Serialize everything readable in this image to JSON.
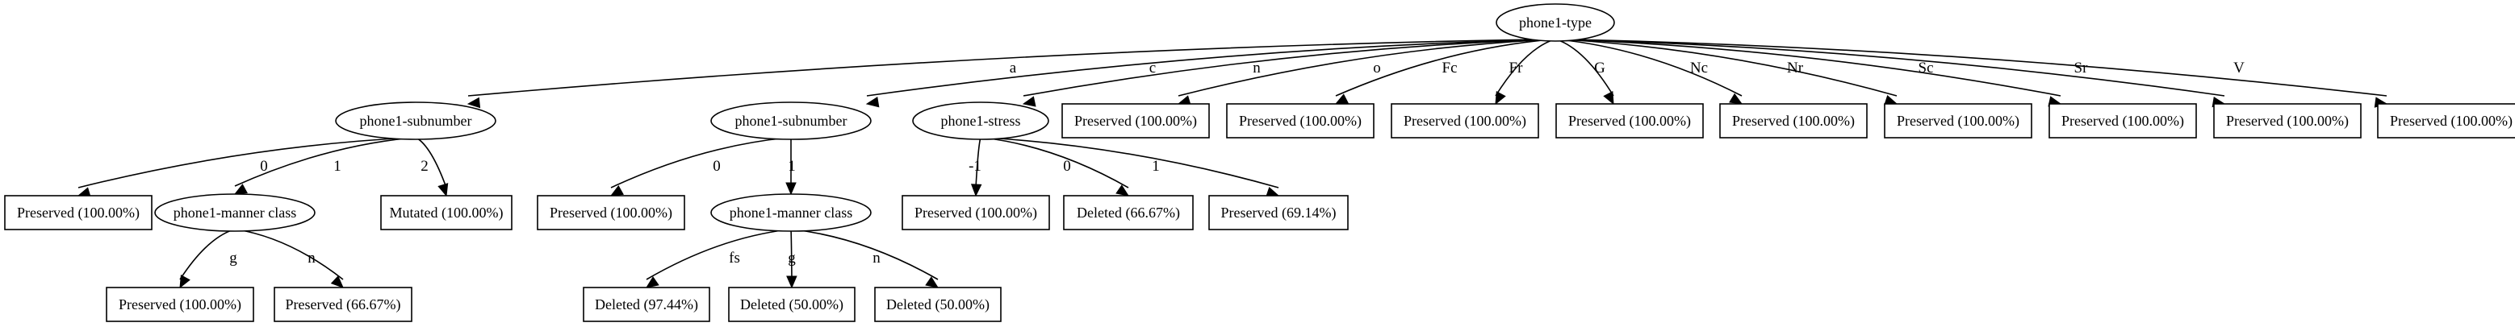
{
  "tree": {
    "root": {
      "label": "phone1-type",
      "children": [
        {
          "edge": "a",
          "label": "phone1-subnumber",
          "children": [
            {
              "edge": "0",
              "label": "Preserved (100.00%)"
            },
            {
              "edge": "1",
              "label": "phone1-manner class",
              "children": [
                {
                  "edge": "g",
                  "label": "Preserved (100.00%)"
                },
                {
                  "edge": "n",
                  "label": "Preserved (66.67%)"
                }
              ]
            },
            {
              "edge": "2",
              "label": "Mutated (100.00%)"
            }
          ]
        },
        {
          "edge": "c",
          "label": "phone1-subnumber",
          "children": [
            {
              "edge": "0",
              "label": "Preserved (100.00%)"
            },
            {
              "edge": "1",
              "label": "phone1-manner class",
              "children": [
                {
                  "edge": "fs",
                  "label": "Deleted (97.44%)"
                },
                {
                  "edge": "g",
                  "label": "Deleted (50.00%)"
                },
                {
                  "edge": "n",
                  "label": "Deleted (50.00%)"
                }
              ]
            }
          ]
        },
        {
          "edge": "n",
          "label": "phone1-stress",
          "children": [
            {
              "edge": "-1",
              "label": "Preserved (100.00%)"
            },
            {
              "edge": "0",
              "label": "Deleted (66.67%)"
            },
            {
              "edge": "1",
              "label": "Preserved (69.14%)"
            }
          ]
        },
        {
          "edge": "o",
          "label": "Preserved (100.00%)"
        },
        {
          "edge": "Fc",
          "label": "Preserved (100.00%)"
        },
        {
          "edge": "Fr",
          "label": "Preserved (100.00%)"
        },
        {
          "edge": "G",
          "label": "Preserved (100.00%)"
        },
        {
          "edge": "Nc",
          "label": "Preserved (100.00%)"
        },
        {
          "edge": "Nr",
          "label": "Preserved (100.00%)"
        },
        {
          "edge": "Sc",
          "label": "Preserved (100.00%)"
        },
        {
          "edge": "Sr",
          "label": "Preserved (100.00%)"
        },
        {
          "edge": "V",
          "label": "Preserved (100.00%)"
        }
      ]
    }
  }
}
